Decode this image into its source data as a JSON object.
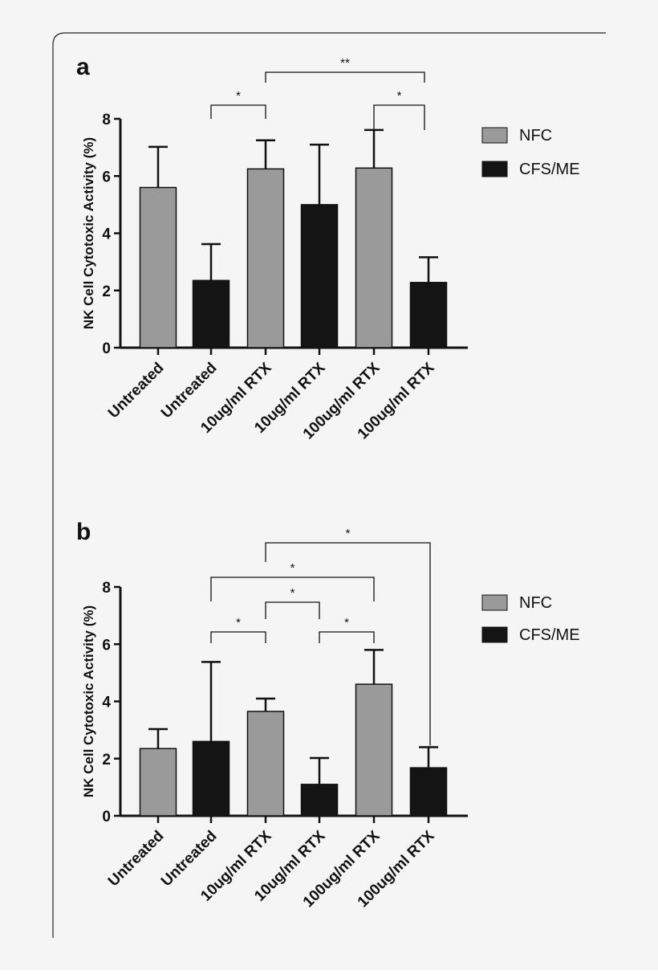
{
  "chart_data": [
    {
      "type": "bar",
      "panel_label": "a",
      "ylabel": "NK Cell Cytotoxic Activity (%)",
      "xlabel": "",
      "ylim": [
        0,
        8
      ],
      "yticks": [
        0,
        2,
        4,
        6,
        8
      ],
      "categories": [
        "Untreated",
        "Untreated",
        "10ug/ml RTX",
        "10ug/ml RTX",
        "100ug/ml RTX",
        "100ug/ml RTX"
      ],
      "values": [
        5.6,
        2.35,
        6.25,
        5.0,
        6.28,
        2.28
      ],
      "error": [
        1.42,
        1.27,
        1.0,
        2.1,
        1.33,
        0.88
      ],
      "groups": [
        "NFC",
        "CFS/ME",
        "NFC",
        "CFS/ME",
        "NFC",
        "CFS/ME"
      ],
      "legend": [
        {
          "name": "NFC",
          "color": "#9a9a9a"
        },
        {
          "name": "CFS/ME",
          "color": "#141414"
        }
      ],
      "legend_position": "right",
      "significance": [
        {
          "from": 1,
          "to": 2,
          "label": "*"
        },
        {
          "from": 2,
          "to": 5,
          "label": "**"
        },
        {
          "from": 4,
          "to": 5,
          "label": "*"
        }
      ]
    },
    {
      "type": "bar",
      "panel_label": "b",
      "ylabel": "NK Cell Cytotoxic Activity (%)",
      "xlabel": "",
      "ylim": [
        0,
        8
      ],
      "yticks": [
        0,
        2,
        4,
        6,
        8
      ],
      "categories": [
        "Untreated",
        "Untreated",
        "10ug/ml RTX",
        "10ug/ml RTX",
        "100ug/ml RTX",
        "100ug/ml RTX"
      ],
      "values": [
        2.35,
        2.6,
        3.65,
        1.1,
        4.6,
        1.68
      ],
      "error": [
        0.68,
        2.78,
        0.45,
        0.92,
        1.2,
        0.72
      ],
      "groups": [
        "NFC",
        "CFS/ME",
        "NFC",
        "CFS/ME",
        "NFC",
        "CFS/ME"
      ],
      "legend": [
        {
          "name": "NFC",
          "color": "#9a9a9a"
        },
        {
          "name": "CFS/ME",
          "color": "#141414"
        }
      ],
      "legend_position": "right",
      "significance": [
        {
          "from": 1,
          "to": 2,
          "label": "*"
        },
        {
          "from": 2,
          "to": 3,
          "label": "*"
        },
        {
          "from": 1,
          "to": 4,
          "label": "*"
        },
        {
          "from": 3,
          "to": 4,
          "label": "*"
        },
        {
          "from": 2,
          "to": 5,
          "label": "*"
        }
      ]
    }
  ]
}
